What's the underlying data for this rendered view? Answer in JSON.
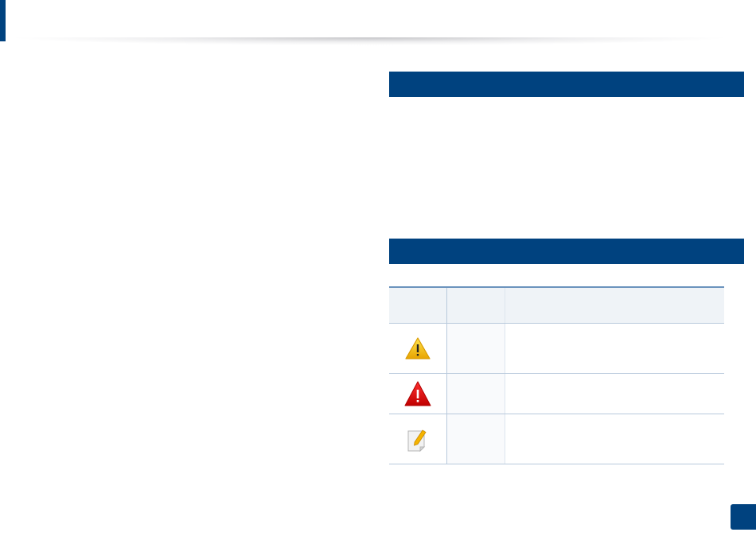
{
  "colors": {
    "brand_blue": "#00427f",
    "table_rule": "#6b93bd",
    "table_header_bg": "#eff3f7"
  },
  "notice_table": {
    "rows": [
      {
        "icon": "warning-icon"
      },
      {
        "icon": "caution-icon"
      },
      {
        "icon": "note-icon"
      }
    ]
  }
}
